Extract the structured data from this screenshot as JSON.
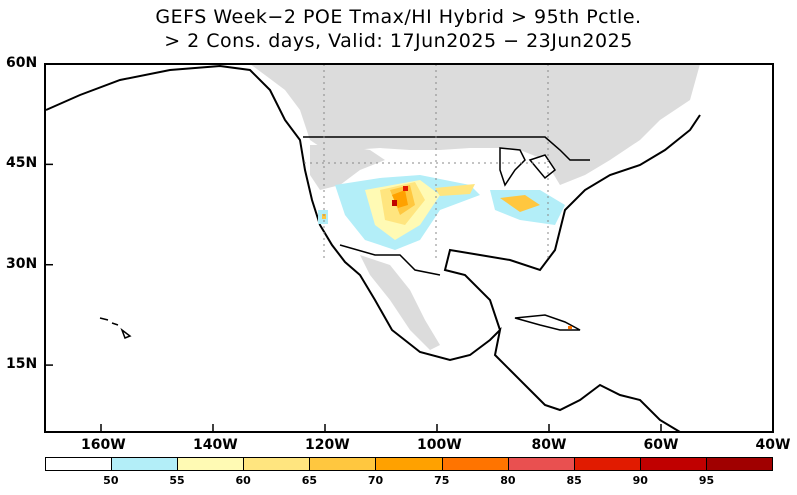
{
  "title": {
    "line1": "GEFS Week−2 POE Tmax/HI Hybrid > 95th Pctle.",
    "line2": "> 2 Cons. days, Valid: 17Jun2025 − 23Jun2025"
  },
  "axes": {
    "lat_labels": [
      "60N",
      "45N",
      "30N",
      "15N"
    ],
    "lat_values": [
      60,
      45,
      30,
      15
    ],
    "lon_labels": [
      "160W",
      "140W",
      "120W",
      "100W",
      "80W",
      "60W",
      "40W"
    ],
    "lon_values": [
      -160,
      -140,
      -120,
      -100,
      -80,
      -60,
      -40
    ],
    "lon_range": [
      -170,
      -40
    ],
    "lat_range": [
      5,
      60
    ]
  },
  "colorbar": {
    "colors": [
      "#ffffff",
      "#b3eef8",
      "#fffab4",
      "#ffe57f",
      "#ffc73f",
      "#ffa100",
      "#ff7400",
      "#e95050",
      "#e11b00",
      "#c00000",
      "#a00000"
    ],
    "labels": [
      "50",
      "55",
      "60",
      "65",
      "70",
      "75",
      "80",
      "85",
      "90",
      "95"
    ]
  },
  "colors": {
    "land_mask": "#dcdcdc",
    "coast": "#000000"
  }
}
